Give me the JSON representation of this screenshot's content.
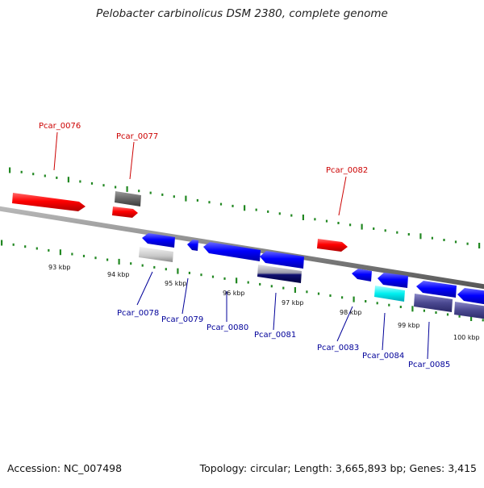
{
  "title": "Pelobacter carbinolicus DSM 2380, complete genome",
  "accession_text": "Accession: NC_007498",
  "summary_text": "Topology: circular; Length: 3,665,893 bp; Genes: 3,415",
  "colors": {
    "forward_label": "#cc0000",
    "reverse_label": "#000099",
    "tick": "#228822",
    "backbone": "#888888"
  },
  "kbp_labels": [
    "93 kbp",
    "94 kbp",
    "95 kbp",
    "96 kbp",
    "97 kbp",
    "98 kbp",
    "99 kbp",
    "100 kbp"
  ],
  "forward_gene_labels": [
    "Pcar_0076",
    "Pcar_0077",
    "Pcar_0082"
  ],
  "reverse_gene_labels": [
    "Pcar_0078",
    "Pcar_0079",
    "Pcar_0080",
    "Pcar_0081",
    "Pcar_0083",
    "Pcar_0084",
    "Pcar_0085"
  ]
}
